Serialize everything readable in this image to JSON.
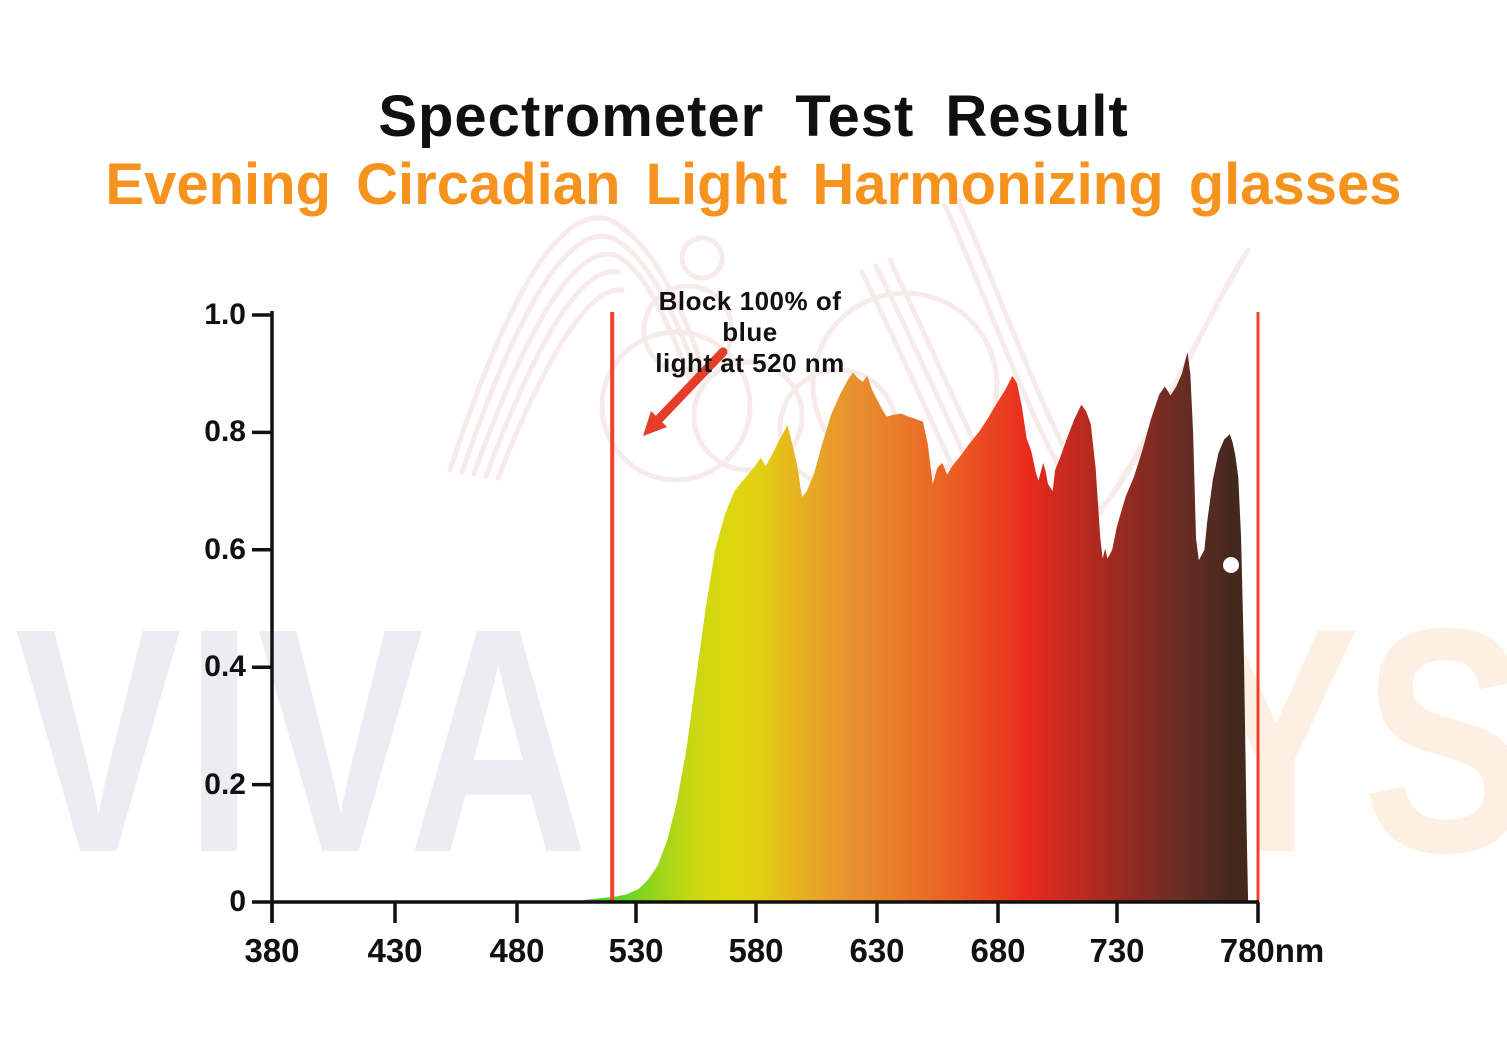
{
  "header": {
    "title": "Spectrometer Test Result",
    "subtitle": "Evening Circadian Light Harmonizing glasses",
    "title_color": "#101010",
    "subtitle_color": "#f6921e"
  },
  "watermark": {
    "left_text": "VIVA",
    "right_text": "YS",
    "left_color": "#edecf3",
    "right_color": "#fdf0e3"
  },
  "annotation": {
    "line1": "Block 100% of blue",
    "line2": "light at 520 nm",
    "arrow_color": "#e63c2a"
  },
  "chart_data": {
    "type": "area",
    "title": "Spectrometer Test Result",
    "subtitle": "Evening Circadian Light Harmonizing glasses",
    "x_unit": "nm",
    "xlim": [
      380,
      780
    ],
    "ylim": [
      0,
      1
    ],
    "grid": false,
    "legend": "none",
    "axis_color": "#111111",
    "x_ticks": [
      380,
      430,
      480,
      530,
      580,
      630,
      680,
      730,
      780
    ],
    "x_tick_labels": [
      "380",
      "430",
      "480",
      "530",
      "580",
      "630",
      "680",
      "730",
      "780nm"
    ],
    "y_tick_values": [
      1.0,
      0.8,
      0.6,
      0.4,
      0.2,
      0
    ],
    "y_tick_labels": [
      "1.0",
      "0.8",
      "0.6",
      "0.4",
      "0.2",
      "0"
    ],
    "marker_lines_nm": [
      520,
      780
    ],
    "marker_color": "#f2402a",
    "annotation_text": "Block 100% of blue light at 520 nm",
    "curve_points": [
      [
        505,
        0
      ],
      [
        509,
        0.004
      ],
      [
        514,
        0.006
      ],
      [
        521,
        0.009
      ],
      [
        526,
        0.013
      ],
      [
        531,
        0.022
      ],
      [
        535,
        0.038
      ],
      [
        539,
        0.062
      ],
      [
        543,
        0.105
      ],
      [
        547,
        0.17
      ],
      [
        551,
        0.26
      ],
      [
        555,
        0.38
      ],
      [
        559,
        0.5
      ],
      [
        563,
        0.6
      ],
      [
        567,
        0.66
      ],
      [
        571,
        0.7
      ],
      [
        575,
        0.72
      ],
      [
        578,
        0.735
      ],
      [
        580,
        0.745
      ],
      [
        582,
        0.757
      ],
      [
        584,
        0.742
      ],
      [
        587,
        0.765
      ],
      [
        590,
        0.79
      ],
      [
        593,
        0.812
      ],
      [
        595,
        0.78
      ],
      [
        597,
        0.745
      ],
      [
        599,
        0.69
      ],
      [
        601,
        0.7
      ],
      [
        604,
        0.73
      ],
      [
        607,
        0.775
      ],
      [
        611,
        0.83
      ],
      [
        615,
        0.867
      ],
      [
        618,
        0.89
      ],
      [
        620,
        0.902
      ],
      [
        622,
        0.893
      ],
      [
        624,
        0.886
      ],
      [
        626,
        0.896
      ],
      [
        628,
        0.872
      ],
      [
        630,
        0.856
      ],
      [
        632,
        0.84
      ],
      [
        634,
        0.827
      ],
      [
        637,
        0.83
      ],
      [
        640,
        0.832
      ],
      [
        643,
        0.827
      ],
      [
        646,
        0.823
      ],
      [
        649,
        0.818
      ],
      [
        651,
        0.78
      ],
      [
        653,
        0.712
      ],
      [
        655,
        0.74
      ],
      [
        657,
        0.748
      ],
      [
        659,
        0.728
      ],
      [
        661,
        0.742
      ],
      [
        664,
        0.757
      ],
      [
        668,
        0.78
      ],
      [
        672,
        0.8
      ],
      [
        676,
        0.825
      ],
      [
        680,
        0.853
      ],
      [
        683,
        0.872
      ],
      [
        686,
        0.896
      ],
      [
        688,
        0.884
      ],
      [
        690,
        0.845
      ],
      [
        692,
        0.79
      ],
      [
        694,
        0.768
      ],
      [
        696,
        0.73
      ],
      [
        697,
        0.718
      ],
      [
        699,
        0.748
      ],
      [
        700,
        0.734
      ],
      [
        701,
        0.712
      ],
      [
        703,
        0.7
      ],
      [
        704,
        0.736
      ],
      [
        706,
        0.756
      ],
      [
        709,
        0.79
      ],
      [
        712,
        0.822
      ],
      [
        715,
        0.847
      ],
      [
        717,
        0.836
      ],
      [
        719,
        0.814
      ],
      [
        721,
        0.74
      ],
      [
        723,
        0.62
      ],
      [
        724,
        0.585
      ],
      [
        725,
        0.602
      ],
      [
        726,
        0.585
      ],
      [
        728,
        0.6
      ],
      [
        730,
        0.64
      ],
      [
        733,
        0.69
      ],
      [
        736,
        0.724
      ],
      [
        739,
        0.77
      ],
      [
        742,
        0.822
      ],
      [
        745,
        0.865
      ],
      [
        747,
        0.878
      ],
      [
        749,
        0.863
      ],
      [
        751,
        0.878
      ],
      [
        753,
        0.9
      ],
      [
        755,
        0.937
      ],
      [
        756,
        0.9
      ],
      [
        757,
        0.8
      ],
      [
        758,
        0.62
      ],
      [
        759,
        0.582
      ],
      [
        761,
        0.6
      ],
      [
        762,
        0.648
      ],
      [
        764,
        0.72
      ],
      [
        766,
        0.765
      ],
      [
        768,
        0.788
      ],
      [
        770,
        0.797
      ],
      [
        771,
        0.783
      ],
      [
        772,
        0.76
      ],
      [
        773,
        0.723
      ],
      [
        774,
        0.62
      ],
      [
        775,
        0.42
      ],
      [
        776,
        0.12
      ],
      [
        776.5,
        0
      ]
    ],
    "gradient_stops": [
      {
        "offset": 0.0,
        "color": "#3fd32a"
      },
      {
        "offset": 0.045,
        "color": "#55d426"
      },
      {
        "offset": 0.1,
        "color": "#8fd51c"
      },
      {
        "offset": 0.16,
        "color": "#c6d812"
      },
      {
        "offset": 0.22,
        "color": "#ddd80e"
      },
      {
        "offset": 0.27,
        "color": "#e2cf13"
      },
      {
        "offset": 0.315,
        "color": "#e6b81e"
      },
      {
        "offset": 0.36,
        "color": "#e7a426"
      },
      {
        "offset": 0.41,
        "color": "#e89130"
      },
      {
        "offset": 0.485,
        "color": "#e97b28"
      },
      {
        "offset": 0.565,
        "color": "#ea5f24"
      },
      {
        "offset": 0.64,
        "color": "#ea3e20"
      },
      {
        "offset": 0.685,
        "color": "#e92a1e"
      },
      {
        "offset": 0.765,
        "color": "#bc2a20"
      },
      {
        "offset": 0.845,
        "color": "#8f2b22"
      },
      {
        "offset": 0.915,
        "color": "#6b2c23"
      },
      {
        "offset": 0.975,
        "color": "#502a21"
      },
      {
        "offset": 1.0,
        "color": "#44271d"
      }
    ]
  }
}
